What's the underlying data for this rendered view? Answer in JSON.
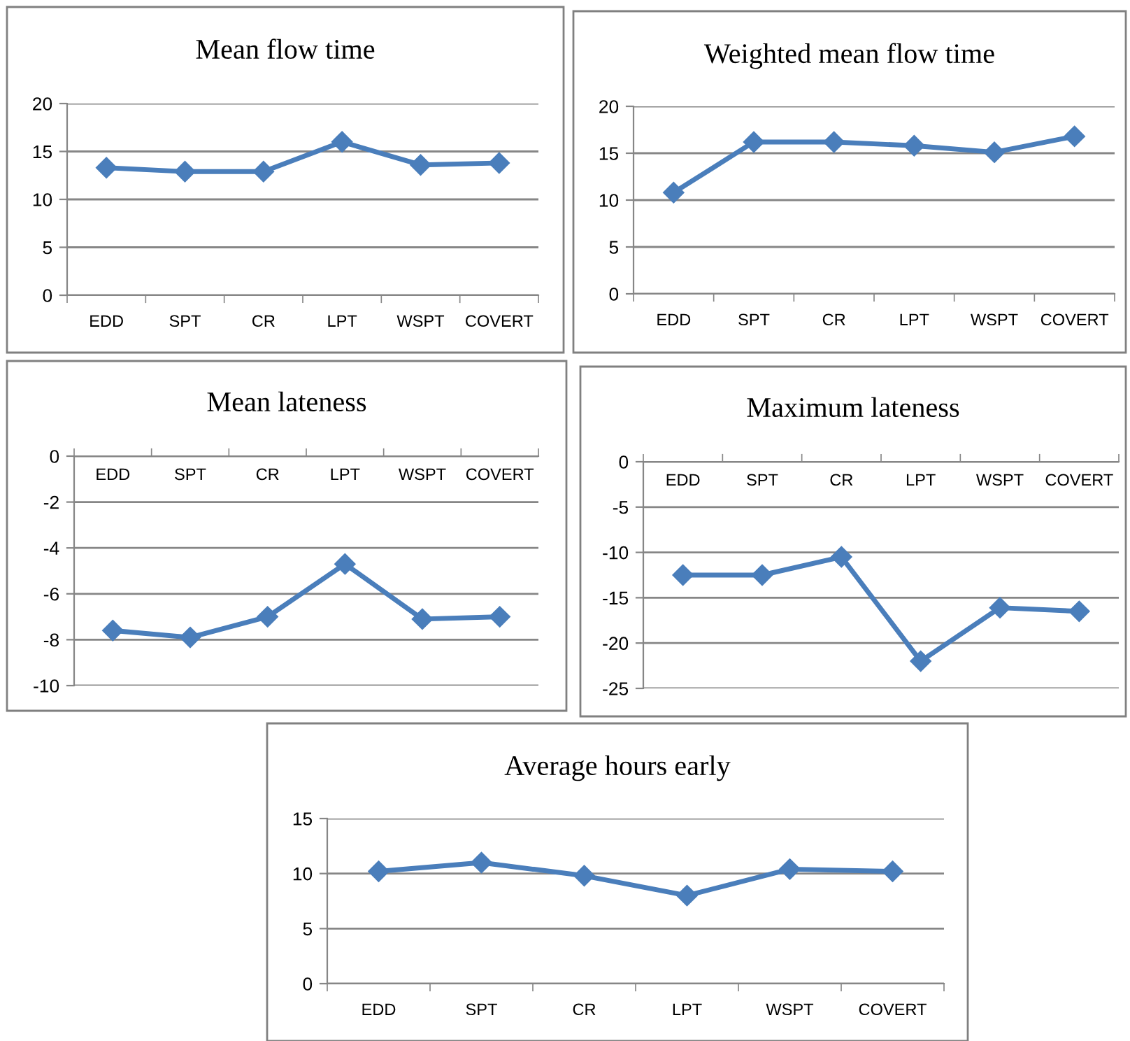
{
  "chart_data": [
    {
      "type": "line",
      "title": "Mean flow time",
      "categories": [
        "EDD",
        "SPT",
        "CR",
        "LPT",
        "WSPT",
        "COVERT"
      ],
      "series": [
        {
          "color": "#4a7ebb",
          "values": [
            13.3,
            12.9,
            12.9,
            16.0,
            13.6,
            13.8
          ]
        }
      ],
      "ylim": [
        0,
        20
      ],
      "yticks": [
        0,
        5,
        10,
        15,
        20
      ],
      "grid": "y",
      "marker": "diamond",
      "line_style": "solid"
    },
    {
      "type": "line",
      "title": "Weighted mean flow time",
      "categories": [
        "EDD",
        "SPT",
        "CR",
        "LPT",
        "WSPT",
        "COVERT"
      ],
      "series": [
        {
          "color": "#4a7ebb",
          "values": [
            10.8,
            16.2,
            16.2,
            15.8,
            15.1,
            16.8
          ]
        }
      ],
      "ylim": [
        0,
        20
      ],
      "yticks": [
        0,
        5,
        10,
        15,
        20
      ],
      "grid": "y",
      "marker": "diamond",
      "line_style": "solid"
    },
    {
      "type": "line",
      "title": "Mean lateness",
      "categories": [
        "EDD",
        "SPT",
        "CR",
        "LPT",
        "WSPT",
        "COVERT"
      ],
      "series": [
        {
          "color": "#4a7ebb",
          "values": [
            -7.6,
            -7.9,
            -7.0,
            -4.7,
            -7.1,
            -7.0
          ]
        }
      ],
      "ylim": [
        -10,
        0
      ],
      "yticks": [
        -10,
        -8,
        -6,
        -4,
        -2,
        0
      ],
      "grid": "y",
      "marker": "diamond",
      "line_style": "solid"
    },
    {
      "type": "line",
      "title": "Maximum lateness",
      "categories": [
        "EDD",
        "SPT",
        "CR",
        "LPT",
        "WSPT",
        "COVERT"
      ],
      "series": [
        {
          "color": "#4a7ebb",
          "values": [
            -12.5,
            -12.5,
            -10.5,
            -22.0,
            -16.1,
            -16.5
          ]
        }
      ],
      "ylim": [
        -25,
        0
      ],
      "yticks": [
        -25,
        -20,
        -15,
        -10,
        -5,
        0
      ],
      "grid": "y",
      "marker": "diamond",
      "line_style": "solid"
    },
    {
      "type": "line",
      "title": "Average hours early",
      "categories": [
        "EDD",
        "SPT",
        "CR",
        "LPT",
        "WSPT",
        "COVERT"
      ],
      "series": [
        {
          "color": "#4a7ebb",
          "values": [
            10.2,
            11.0,
            9.8,
            8.0,
            10.4,
            10.2
          ]
        }
      ],
      "ylim": [
        0,
        15
      ],
      "yticks": [
        0,
        5,
        10,
        15
      ],
      "grid": "y",
      "marker": "diamond",
      "line_style": "solid"
    }
  ]
}
